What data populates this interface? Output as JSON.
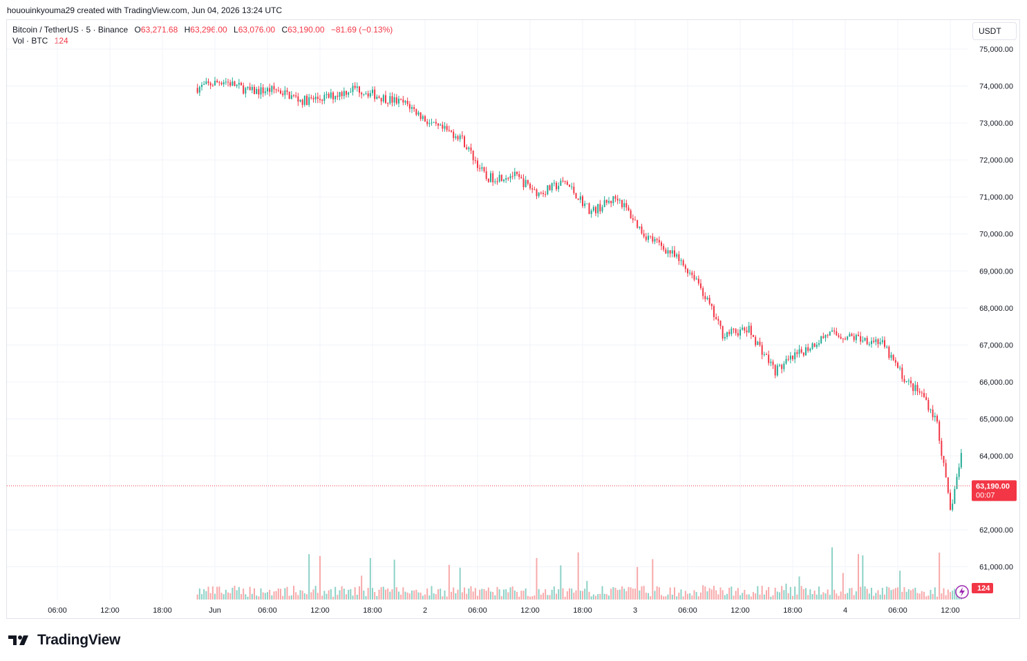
{
  "header": {
    "created_by": "hououinkyouma29 created with TradingView.com, Jun 04, 2026 13:24 UTC"
  },
  "legend": {
    "symbol": "Bitcoin / TetherUS · 5 · Binance",
    "o_label": "O",
    "o_value": "63,271.68",
    "h_label": "H",
    "h_value": "63,296.00",
    "l_label": "L",
    "l_value": "63,076.00",
    "c_label": "C",
    "c_value": "63,190.00",
    "change": "−81.69 (−0.13%)",
    "vol_label": "Vol · BTC",
    "vol_value": "124"
  },
  "currency_button": "USDT",
  "last_price": {
    "price": "63,190.00",
    "countdown": "00:07",
    "volume": "124"
  },
  "branding": {
    "logo_text": "TradingView"
  },
  "colors": {
    "up": "#22ab94",
    "down": "#f23645",
    "up_vol": "#8cd1c6",
    "down_vol": "#f7a8a9",
    "grid": "#f0f3fa"
  },
  "chart_data": {
    "type": "line",
    "title": "Bitcoin / TetherUS · 5 · Binance",
    "xlabel": "",
    "ylabel": "",
    "ylim": [
      60400,
      75500
    ],
    "x_ticks": [
      "06:00",
      "12:00",
      "18:00",
      "Jun",
      "06:00",
      "12:00",
      "18:00",
      "2",
      "06:00",
      "12:00",
      "18:00",
      "3",
      "06:00",
      "12:00",
      "18:00",
      "4",
      "06:00",
      "12:00"
    ],
    "y_ticks": [
      "75,000.00",
      "74,000.00",
      "73,000.00",
      "72,000.00",
      "71,000.00",
      "70,000.00",
      "69,000.00",
      "68,000.00",
      "67,000.00",
      "66,000.00",
      "65,000.00",
      "64,000.00",
      "62,000.00",
      "61,000.00"
    ],
    "x_hours": [
      0,
      3,
      6,
      9,
      12,
      15,
      18,
      21,
      24,
      27,
      30,
      33,
      36,
      39,
      42,
      45,
      48,
      51,
      54,
      57,
      60,
      63,
      66,
      69,
      72,
      75,
      78,
      81,
      83,
      84.5,
      86,
      87.5,
      90,
      93,
      96,
      97,
      98
    ],
    "x_hours_note_skip": true,
    "series": [
      {
        "name": "BTC/USDT price",
        "x": [
          "-2",
          "1",
          "4",
          "7",
          "10",
          "13",
          "16",
          "19",
          "22",
          "25",
          "28",
          "31",
          "34",
          "37",
          "40",
          "43",
          "46",
          "49",
          "52",
          "55",
          "58",
          "61",
          "64",
          "67",
          "70",
          "73",
          "76",
          "79",
          "81",
          "82.5",
          "84",
          "85.5",
          "88",
          "91",
          "94",
          "95",
          "96"
        ],
        "values": [
          73950,
          74150,
          73850,
          73900,
          73600,
          73700,
          73950,
          73700,
          73500,
          72900,
          72650,
          71500,
          71600,
          71100,
          71400,
          70600,
          71000,
          70000,
          69500,
          68800,
          67300,
          67400,
          66300,
          66800,
          67300,
          67200,
          67100,
          66000,
          65600,
          64900,
          62500,
          64300,
          64200,
          63200,
          62400,
          63700,
          63190
        ]
      }
    ]
  }
}
